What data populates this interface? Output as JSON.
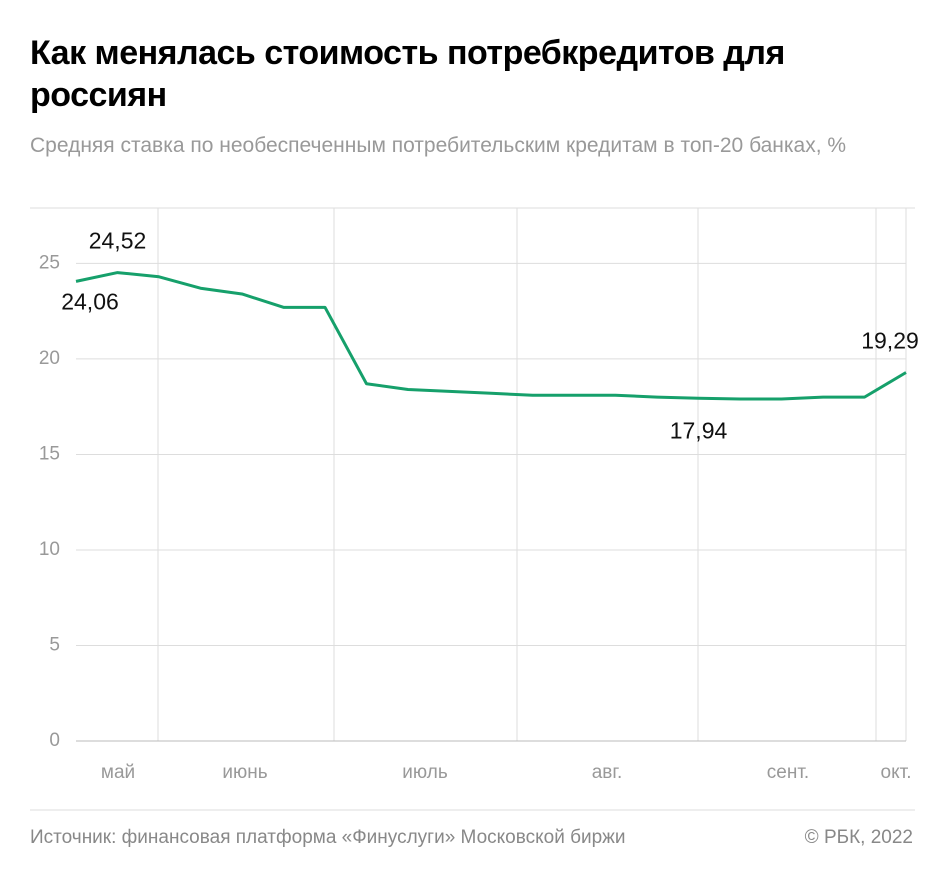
{
  "chart_data": {
    "type": "line",
    "title": "Как менялась стоимость потребкредитов для россиян",
    "subtitle": "Средняя ставка по необеспеченным потребительским кредитам в топ-20 банках, %",
    "source": "Источник: финансовая платформа «Финуслуги» Московской биржи",
    "copyright": "© РБК, 2022",
    "months": [
      "май",
      "июнь",
      "июль",
      "авг.",
      "сент.",
      "окт."
    ],
    "series": [
      {
        "color": "#16a06b",
        "values": [
          24.06,
          24.52,
          24.3,
          23.7,
          23.4,
          22.7,
          22.7,
          18.7,
          18.4,
          18.3,
          18.2,
          18.1,
          18.1,
          18.1,
          18.0,
          17.94,
          17.9,
          17.9,
          18.0,
          18.0,
          19.29
        ],
        "value_labels": [
          "24,06",
          "24,52",
          null,
          null,
          null,
          null,
          null,
          null,
          null,
          null,
          null,
          null,
          null,
          null,
          null,
          "17,94",
          null,
          null,
          null,
          null,
          "19,29"
        ]
      }
    ],
    "ylim": [
      0,
      27.9
    ],
    "yticks": [
      0,
      5,
      10,
      15,
      20,
      25
    ],
    "grid": true
  }
}
